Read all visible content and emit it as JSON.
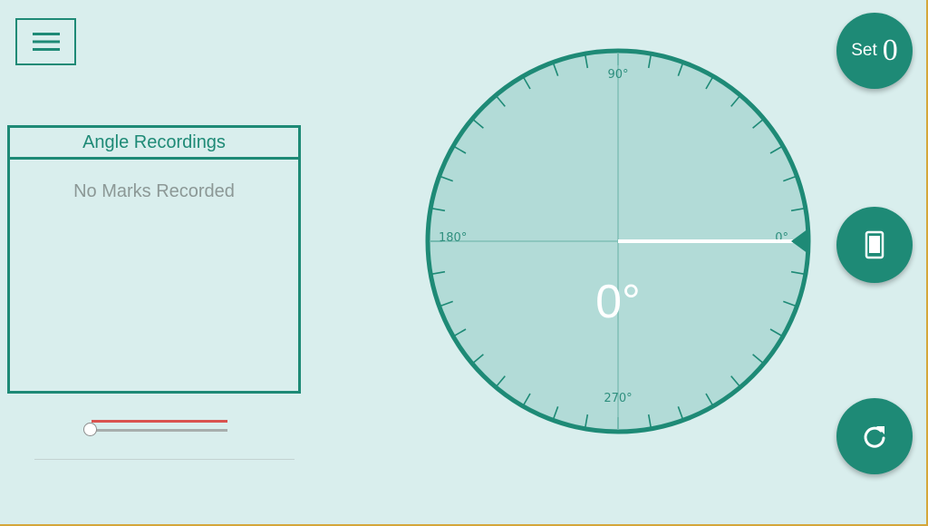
{
  "menu": {
    "icon": "hamburger-icon"
  },
  "recordings": {
    "title": "Angle Recordings",
    "empty_text": "No Marks Recorded"
  },
  "slider": {
    "value_fraction": 0
  },
  "protractor": {
    "labels": {
      "deg0": "0°",
      "deg90": "90°",
      "deg180": "180°",
      "deg270": "270°"
    },
    "current_angle": 0,
    "readout": "0°",
    "tick_step_deg": 10
  },
  "buttons": {
    "set_label": "Set",
    "set_value": "0",
    "phone_icon": "phone-icon",
    "reset_icon": "refresh-icon"
  },
  "colors": {
    "background": "#d9eeed",
    "primary": "#1e8a76",
    "dial_fill": "#b2dbd7",
    "needle": "#ffffff",
    "slider_active": "#d9534f",
    "frame_border": "#d4a63a"
  }
}
